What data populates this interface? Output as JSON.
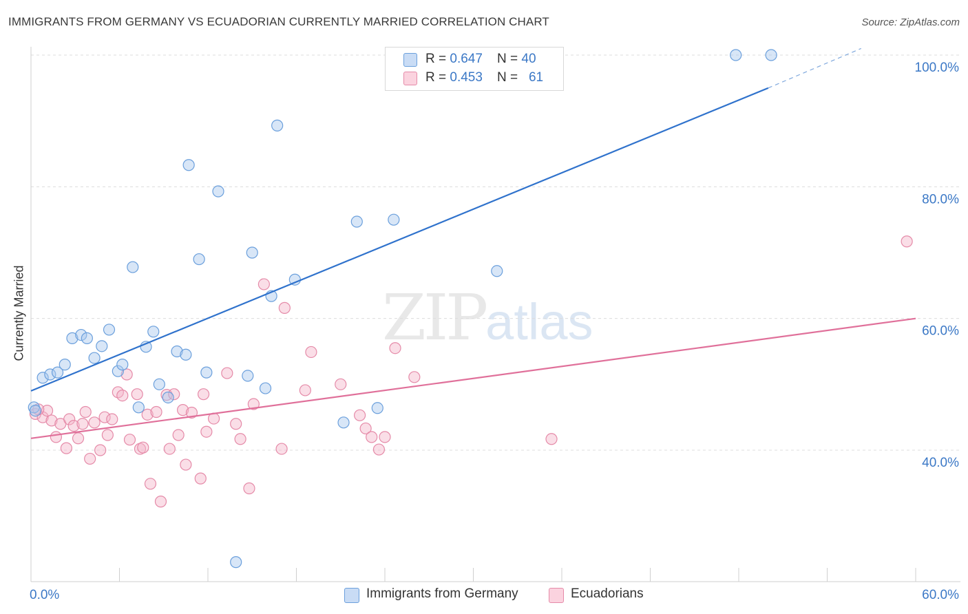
{
  "header": {
    "title": "IMMIGRANTS FROM GERMANY VS ECUADORIAN CURRENTLY MARRIED CORRELATION CHART",
    "source": "Source: ZipAtlas.com"
  },
  "watermark": {
    "zip": "ZIP",
    "atlas": "atlas"
  },
  "legend_top": {
    "rows": [
      {
        "r_label": "R = ",
        "r_value": "0.647",
        "n_label": "N = ",
        "n_value": "40",
        "color": "#a9c8ee"
      },
      {
        "r_label": "R = ",
        "r_value": "0.453",
        "n_label": "N = ",
        "n_value": "61",
        "color": "#f5b6c9"
      }
    ]
  },
  "legend_bottom": {
    "items": [
      {
        "label": "Immigrants from Germany",
        "color": "#a9c8ee"
      },
      {
        "label": "Ecuadorians",
        "color": "#f5b6c9"
      }
    ]
  },
  "chart_data": {
    "type": "scatter",
    "title": "IMMIGRANTS FROM GERMANY VS ECUADORIAN CURRENTLY MARRIED CORRELATION CHART",
    "xlabel": "",
    "ylabel": "Currently Married",
    "xlim": [
      0,
      60
    ],
    "ylim": [
      20,
      102
    ],
    "x_tick_labels": [
      "0.0%",
      "60.0%"
    ],
    "y_tick_labels": [
      "40.0%",
      "60.0%",
      "80.0%",
      "100.0%"
    ],
    "y_ticks": [
      40,
      60,
      80,
      100
    ],
    "grid": "horizontal dashed",
    "legend_placement": "top-center and bottom",
    "series": [
      {
        "name": "Immigrants from Germany",
        "color": "#6a9fdc",
        "fill": "#a9c8ee",
        "points": [
          [
            0.2,
            46.5
          ],
          [
            0.8,
            51
          ],
          [
            1.3,
            51.5
          ],
          [
            1.8,
            51.8
          ],
          [
            2.3,
            53
          ],
          [
            2.8,
            57
          ],
          [
            3.4,
            57.5
          ],
          [
            3.8,
            57
          ],
          [
            4.3,
            54
          ],
          [
            4.8,
            55.8
          ],
          [
            5.3,
            58.3
          ],
          [
            5.9,
            52
          ],
          [
            6.2,
            53
          ],
          [
            6.9,
            67.8
          ],
          [
            7.3,
            46.5
          ],
          [
            7.8,
            55.7
          ],
          [
            8.3,
            58
          ],
          [
            8.7,
            50
          ],
          [
            9.3,
            48
          ],
          [
            9.9,
            55
          ],
          [
            10.5,
            54.5
          ],
          [
            10.7,
            83.3
          ],
          [
            11.4,
            69
          ],
          [
            11.9,
            51.8
          ],
          [
            12.7,
            79.3
          ],
          [
            13.9,
            23
          ],
          [
            14.7,
            51.3
          ],
          [
            15.0,
            70
          ],
          [
            15.9,
            49.4
          ],
          [
            16.3,
            63.4
          ],
          [
            16.7,
            89.3
          ],
          [
            17.9,
            65.9
          ],
          [
            21.2,
            44.2
          ],
          [
            22.1,
            74.7
          ],
          [
            23.5,
            46.4
          ],
          [
            24.6,
            75
          ],
          [
            31.6,
            67.2
          ],
          [
            47.8,
            100
          ],
          [
            50.2,
            100
          ],
          [
            0.3,
            46
          ]
        ],
        "trend": {
          "x": [
            0,
            50
          ],
          "y": [
            49,
            95
          ]
        },
        "trend_dashed": {
          "x": [
            50,
            56.3
          ],
          "y": [
            95,
            101
          ]
        }
      },
      {
        "name": "Ecuadorians",
        "color": "#e58aa8",
        "fill": "#f5b6c9",
        "points": [
          [
            0.3,
            45.5
          ],
          [
            0.8,
            45
          ],
          [
            1.1,
            46
          ],
          [
            1.4,
            44.5
          ],
          [
            1.7,
            42
          ],
          [
            2.0,
            44
          ],
          [
            2.4,
            40.3
          ],
          [
            2.6,
            44.7
          ],
          [
            2.9,
            43.7
          ],
          [
            3.2,
            41.8
          ],
          [
            3.5,
            44
          ],
          [
            3.7,
            45.8
          ],
          [
            4.0,
            38.7
          ],
          [
            4.3,
            44.2
          ],
          [
            4.7,
            40
          ],
          [
            5.0,
            45
          ],
          [
            5.2,
            42.3
          ],
          [
            5.5,
            44.7
          ],
          [
            5.9,
            48.8
          ],
          [
            6.2,
            48.3
          ],
          [
            6.5,
            51.5
          ],
          [
            6.7,
            41.6
          ],
          [
            7.2,
            48.5
          ],
          [
            7.4,
            40.2
          ],
          [
            7.6,
            40.4
          ],
          [
            7.9,
            45.4
          ],
          [
            8.1,
            34.9
          ],
          [
            8.5,
            45.8
          ],
          [
            8.8,
            32.2
          ],
          [
            9.2,
            48.4
          ],
          [
            9.4,
            40.2
          ],
          [
            9.7,
            48.5
          ],
          [
            10.0,
            42.3
          ],
          [
            10.3,
            46.1
          ],
          [
            10.5,
            37.8
          ],
          [
            10.9,
            45.7
          ],
          [
            11.5,
            35.7
          ],
          [
            11.7,
            48.5
          ],
          [
            11.9,
            42.8
          ],
          [
            12.4,
            44.8
          ],
          [
            13.3,
            51.7
          ],
          [
            13.9,
            44
          ],
          [
            14.2,
            41.7
          ],
          [
            14.8,
            34.2
          ],
          [
            15.1,
            47
          ],
          [
            15.8,
            65.2
          ],
          [
            17.0,
            40.2
          ],
          [
            17.2,
            61.6
          ],
          [
            18.6,
            49.1
          ],
          [
            19.0,
            54.9
          ],
          [
            21.0,
            50
          ],
          [
            22.3,
            45.3
          ],
          [
            22.7,
            43.3
          ],
          [
            23.1,
            42
          ],
          [
            23.6,
            40.1
          ],
          [
            24.0,
            42
          ],
          [
            24.7,
            55.5
          ],
          [
            26.0,
            51.1
          ],
          [
            35.3,
            41.7
          ],
          [
            59.4,
            71.7
          ],
          [
            0.5,
            46.2
          ]
        ],
        "trend": {
          "x": [
            0,
            60
          ],
          "y": [
            41.8,
            60
          ]
        }
      }
    ]
  }
}
